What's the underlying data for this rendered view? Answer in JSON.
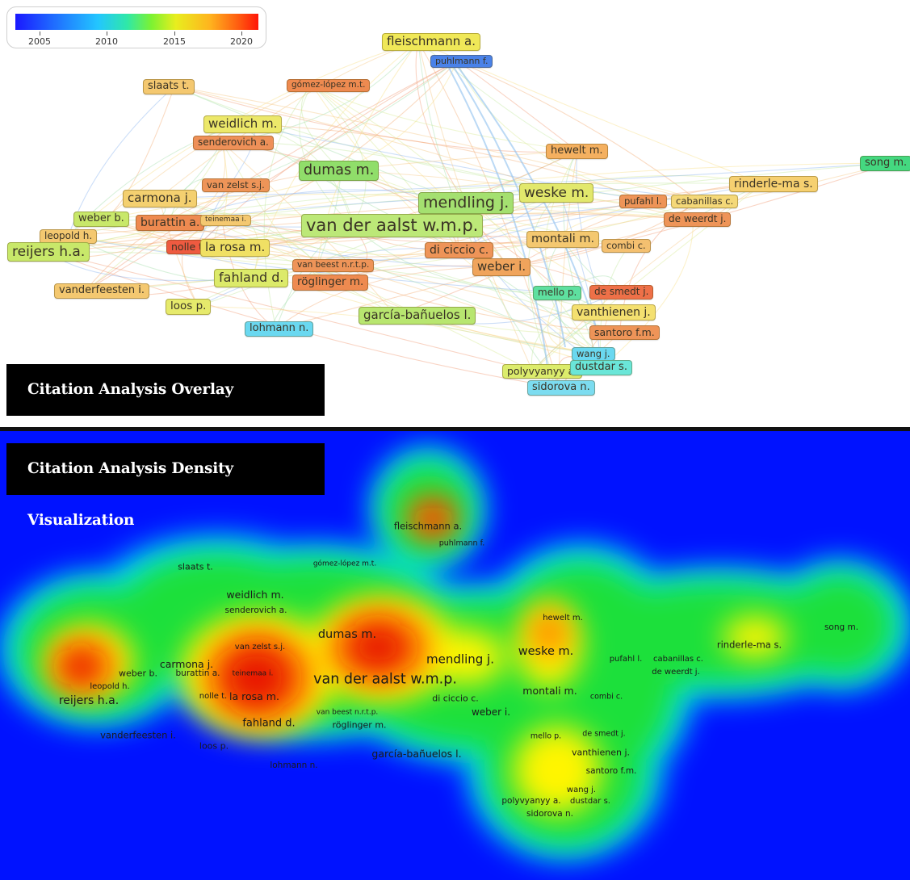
{
  "overlay": {
    "caption": "Citation Analysis Overlay Visualization",
    "legend": {
      "ticks": [
        "2005",
        "2010",
        "2015",
        "2020"
      ],
      "colors": [
        "#1a18ff",
        "#1f63ff",
        "#23c6ff",
        "#2fe8a8",
        "#7cf232",
        "#e8ee1e",
        "#ffb41e",
        "#ff5a10",
        "#ff1508"
      ]
    },
    "nodes": [
      {
        "name": "fleischmann a.",
        "color": "#f0e858"
      },
      {
        "name": "puhlmann f.",
        "color": "#4a82e8"
      },
      {
        "name": "slaats t.",
        "color": "#f4c870"
      },
      {
        "name": "gómez-lópez m.t.",
        "color": "#ee8a50"
      },
      {
        "name": "weidlich m.",
        "color": "#ece86a"
      },
      {
        "name": "senderovich a.",
        "color": "#ee9058"
      },
      {
        "name": "dumas m.",
        "color": "#90de6a"
      },
      {
        "name": "hewelt m.",
        "color": "#f4b060"
      },
      {
        "name": "song m.",
        "color": "#44d880"
      },
      {
        "name": "van zelst s.j.",
        "color": "#ee9458"
      },
      {
        "name": "rinderle-ma s.",
        "color": "#f6d070"
      },
      {
        "name": "mendling j.",
        "color": "#a4e070"
      },
      {
        "name": "weske m.",
        "color": "#e2e86c"
      },
      {
        "name": "carmona j.",
        "color": "#f4d070"
      },
      {
        "name": "pufahl l.",
        "color": "#ee9458"
      },
      {
        "name": "cabanillas c.",
        "color": "#f4d878"
      },
      {
        "name": "weber b.",
        "color": "#c8e86a"
      },
      {
        "name": "burattin a.",
        "color": "#ee8a50"
      },
      {
        "name": "teinemaa i.",
        "color": "#f4c870"
      },
      {
        "name": "van der aalst w.m.p.",
        "color": "#bce878"
      },
      {
        "name": "de weerdt j.",
        "color": "#ee9458"
      },
      {
        "name": "leopold h.",
        "color": "#f4c870"
      },
      {
        "name": "montali m.",
        "color": "#f4c870"
      },
      {
        "name": "reijers h.a.",
        "color": "#c8e86a"
      },
      {
        "name": "nolle t.",
        "color": "#ee5a40"
      },
      {
        "name": "la rosa m.",
        "color": "#f0e064"
      },
      {
        "name": "combi c.",
        "color": "#f4c070"
      },
      {
        "name": "di ciccio c.",
        "color": "#ee9458"
      },
      {
        "name": "weber i.",
        "color": "#f0a45c"
      },
      {
        "name": "van beest n.r.t.p.",
        "color": "#ee9458"
      },
      {
        "name": "fahland d.",
        "color": "#dcea6a"
      },
      {
        "name": "röglinger m.",
        "color": "#ee8a50"
      },
      {
        "name": "mello p.",
        "color": "#5ee0a0"
      },
      {
        "name": "de smedt j.",
        "color": "#ee7048"
      },
      {
        "name": "vanderfeesten i.",
        "color": "#f4c870"
      },
      {
        "name": "loos p.",
        "color": "#e6ea6c"
      },
      {
        "name": "vanthienen j.",
        "color": "#f4e070"
      },
      {
        "name": "garcía-bañuelos l.",
        "color": "#b8e670"
      },
      {
        "name": "lohmann n.",
        "color": "#6ad8f0"
      },
      {
        "name": "santoro f.m.",
        "color": "#ee9458"
      },
      {
        "name": "wang j.",
        "color": "#6ad8f0"
      },
      {
        "name": "polyvyanyy a.",
        "color": "#dcec6c"
      },
      {
        "name": "dustdar s.",
        "color": "#6ae6d8"
      },
      {
        "name": "sidorova n.",
        "color": "#7cdcf0"
      }
    ]
  },
  "density": {
    "caption": "Citation Analysis Density Visualization",
    "colors": {
      "background": "#0012ff",
      "cyan": "#00e0ff",
      "green": "#1fe03a",
      "yellow": "#fff500",
      "orange": "#ff8c00",
      "red": "#e81400"
    },
    "labels": [
      {
        "name": "fleischmann a."
      },
      {
        "name": "puhlmann f."
      },
      {
        "name": "slaats t."
      },
      {
        "name": "gómez-lópez m.t."
      },
      {
        "name": "weidlich m."
      },
      {
        "name": "senderovich a."
      },
      {
        "name": "dumas m."
      },
      {
        "name": "hewelt m."
      },
      {
        "name": "song m."
      },
      {
        "name": "van zelst s.j."
      },
      {
        "name": "rinderle-ma s."
      },
      {
        "name": "mendling j."
      },
      {
        "name": "weske m."
      },
      {
        "name": "carmona j."
      },
      {
        "name": "pufahl l."
      },
      {
        "name": "cabanillas c."
      },
      {
        "name": "weber b."
      },
      {
        "name": "burattin a."
      },
      {
        "name": "teinemaa i."
      },
      {
        "name": "van der aalst w.m.p."
      },
      {
        "name": "de weerdt j."
      },
      {
        "name": "leopold h."
      },
      {
        "name": "montali m."
      },
      {
        "name": "reijers h.a."
      },
      {
        "name": "nolle t."
      },
      {
        "name": "la rosa m."
      },
      {
        "name": "combi c."
      },
      {
        "name": "di ciccio c."
      },
      {
        "name": "weber i."
      },
      {
        "name": "van beest n.r.t.p."
      },
      {
        "name": "fahland d."
      },
      {
        "name": "röglinger m."
      },
      {
        "name": "mello p."
      },
      {
        "name": "de smedt j."
      },
      {
        "name": "vanderfeesten i."
      },
      {
        "name": "loos p."
      },
      {
        "name": "vanthienen j."
      },
      {
        "name": "garcía-bañuelos l."
      },
      {
        "name": "lohmann n."
      },
      {
        "name": "santoro f.m."
      },
      {
        "name": "wang j."
      },
      {
        "name": "polyvyanyy a."
      },
      {
        "name": "dustdar s."
      },
      {
        "name": "sidorova n."
      }
    ]
  }
}
